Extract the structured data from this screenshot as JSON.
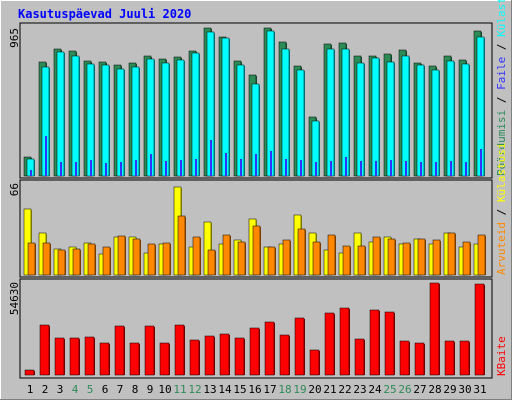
{
  "title": "Kasutuspäevad Juuli 2020",
  "colors": {
    "background": "#c0c0c0",
    "frame_light": "#ffffff",
    "frame_dark": "#808080",
    "title": "#0000ff",
    "label_dark": "#000000",
    "weekend_day": "#2e8b57",
    "hits": "#00ffff",
    "hits_shade": "#0090a0",
    "pages": "#2e8b57",
    "pages_shade": "#1e5a38",
    "files": "#3030ff",
    "visits": "#ffff00",
    "visits_shade": "#a0a000",
    "sites": "#ff8800",
    "sites_shade": "#a05000",
    "kbytes": "#ff0000",
    "kbytes_shade": "#900000"
  },
  "chart_data": [
    {
      "type": "bar",
      "panel": "top",
      "ymax_label": "965",
      "ylim": [
        0,
        965
      ],
      "days": [
        "1",
        "2",
        "3",
        "4",
        "5",
        "6",
        "7",
        "8",
        "9",
        "10",
        "11",
        "12",
        "13",
        "14",
        "15",
        "16",
        "17",
        "18",
        "19",
        "20",
        "21",
        "22",
        "23",
        "24",
        "25",
        "26",
        "27",
        "28",
        "29",
        "30",
        "31"
      ],
      "weekend_days": [
        4,
        5,
        11,
        12,
        18,
        19,
        25,
        26
      ],
      "legend": [
        {
          "text": "Pöördumisi",
          "color": "#2e8b57"
        },
        {
          "text": " / ",
          "color": "#000000"
        },
        {
          "text": "Faile",
          "color": "#3030ff"
        },
        {
          "text": " / ",
          "color": "#000000"
        },
        {
          "text": "Külastusi",
          "color": "#00ffff"
        }
      ],
      "series": [
        {
          "name": "Pöördumisi",
          "values": [
            125,
            735,
            815,
            805,
            740,
            735,
            715,
            725,
            770,
            755,
            765,
            805,
            950,
            895,
            740,
            650,
            950,
            860,
            705,
            380,
            850,
            855,
            770,
            775,
            785,
            810,
            730,
            705,
            770,
            745,
            935
          ]
        },
        {
          "name": "Külastusi",
          "values": [
            110,
            700,
            795,
            775,
            720,
            715,
            690,
            700,
            755,
            730,
            745,
            790,
            925,
            885,
            715,
            595,
            930,
            820,
            680,
            355,
            820,
            820,
            725,
            760,
            735,
            775,
            715,
            680,
            740,
            720,
            895
          ]
        },
        {
          "name": "Faile",
          "values": [
            40,
            260,
            90,
            90,
            100,
            85,
            90,
            100,
            140,
            95,
            100,
            110,
            230,
            150,
            110,
            140,
            160,
            110,
            105,
            90,
            95,
            120,
            95,
            95,
            100,
            95,
            90,
            90,
            95,
            90,
            175
          ]
        }
      ]
    },
    {
      "type": "bar",
      "panel": "middle",
      "ymax_label": "66",
      "ylim": [
        0,
        66
      ],
      "legend": [
        {
          "text": "Arvuteid",
          "color": "#ff8800"
        },
        {
          "text": " / ",
          "color": "#000000"
        },
        {
          "text": "Külastusi",
          "color": "#ffff00"
        }
      ],
      "series": [
        {
          "name": "Külastusi",
          "values": [
            47,
            30,
            19,
            20,
            23,
            15,
            27,
            27,
            16,
            22,
            63,
            20,
            38,
            22,
            25,
            40,
            20,
            22,
            43,
            30,
            18,
            16,
            30,
            24,
            27,
            22,
            26,
            22,
            30,
            20,
            22
          ]
        },
        {
          "name": "Arvuteid",
          "values": [
            23,
            23,
            18,
            19,
            22,
            20,
            28,
            26,
            22,
            23,
            42,
            27,
            18,
            29,
            24,
            35,
            20,
            25,
            33,
            24,
            29,
            21,
            21,
            27,
            26,
            23,
            26,
            25,
            30,
            24,
            29
          ]
        }
      ]
    },
    {
      "type": "bar",
      "panel": "bottom",
      "ymax_label": "54630",
      "ylim": [
        0,
        54630
      ],
      "legend": [
        {
          "text": "KBaite",
          "color": "#ff0000"
        }
      ],
      "series": [
        {
          "name": "KBaite",
          "values": [
            3000,
            29200,
            21800,
            21800,
            22400,
            19000,
            29000,
            18700,
            29000,
            18700,
            29200,
            20500,
            23200,
            23900,
            21800,
            27500,
            31100,
            23400,
            33300,
            14900,
            36500,
            39500,
            20900,
            38200,
            37100,
            19700,
            19000,
            54300,
            19700,
            19700,
            53300
          ]
        }
      ]
    }
  ]
}
